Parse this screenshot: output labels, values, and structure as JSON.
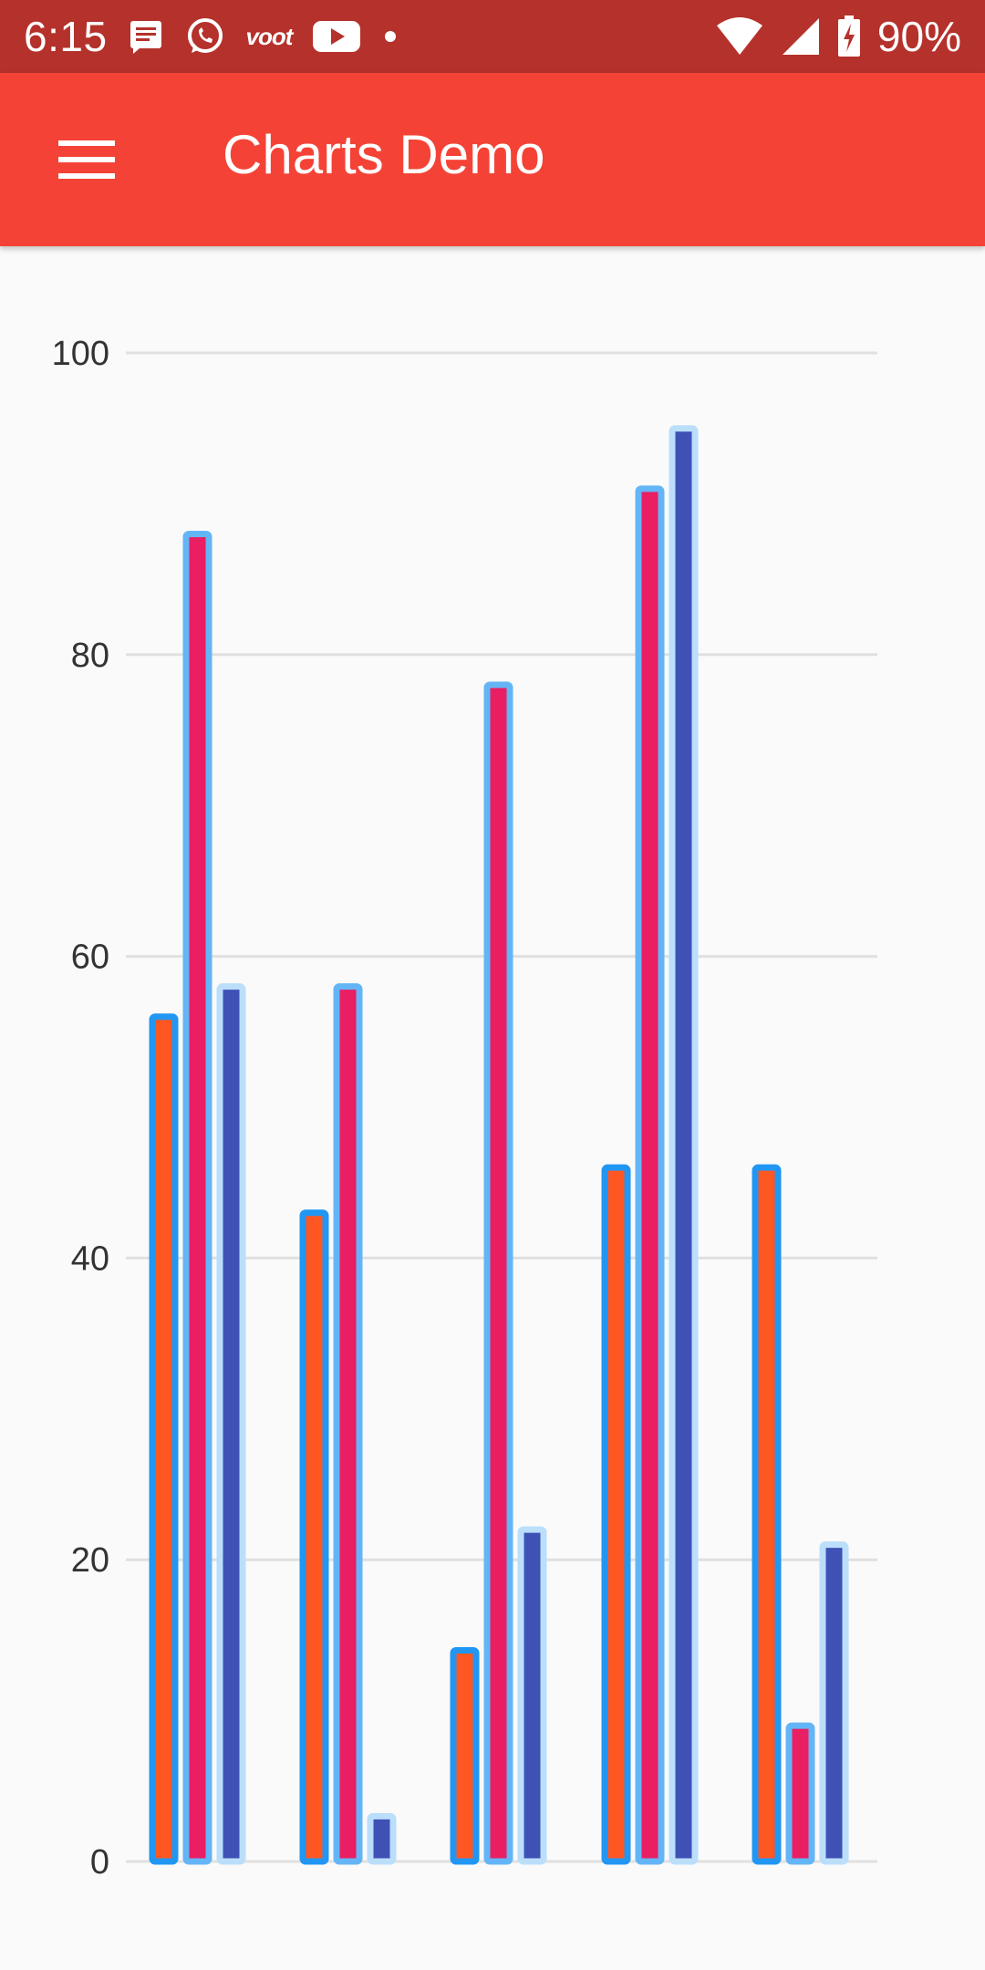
{
  "status_bar": {
    "time": "6:15",
    "icons": [
      "message-icon",
      "whatsapp-icon",
      "voot-icon",
      "youtube-icon",
      "dot-icon"
    ],
    "voot_label": "voot",
    "right_icons": [
      "wifi-icon",
      "signal-icon",
      "battery-charging-icon"
    ],
    "battery": "90%"
  },
  "app_bar": {
    "title": "Charts Demo",
    "menu_icon": "menu-icon"
  },
  "colors": {
    "status_bar": "#b5312b",
    "app_bar": "#f44336",
    "background": "#fafafa",
    "series_fill": [
      "#ff5722",
      "#e91e63",
      "#3f51b5"
    ],
    "series_stroke": [
      "#2196f3",
      "#64b5f6",
      "#bbdefb"
    ],
    "grid": "#e0e0e0"
  },
  "chart_data": {
    "type": "bar",
    "ylim": [
      0,
      100
    ],
    "yticks": [
      0,
      20,
      40,
      60,
      80,
      100
    ],
    "grid": true,
    "xlabel": "",
    "ylabel": "",
    "categories": [
      "",
      "",
      "",
      "",
      ""
    ],
    "series": [
      {
        "values": [
          56,
          43,
          14,
          46,
          46
        ]
      },
      {
        "values": [
          88,
          58,
          78,
          91,
          9
        ]
      },
      {
        "values": [
          58,
          3,
          22,
          95,
          21
        ]
      }
    ]
  }
}
